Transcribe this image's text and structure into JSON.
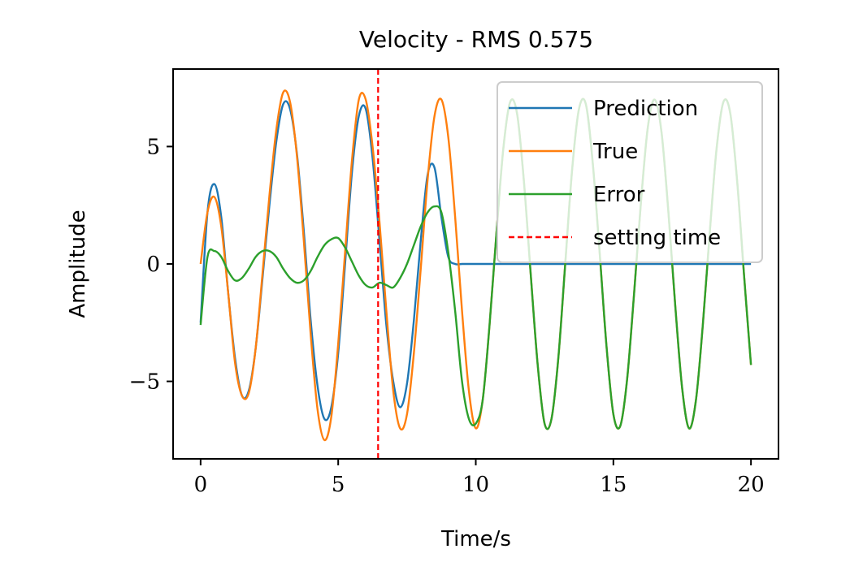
{
  "chart_data": {
    "type": "line",
    "title": "Velocity - RMS 0.575",
    "xlabel": "Time/s",
    "ylabel": "Amplitude",
    "xlim": [
      -1,
      21
    ],
    "ylim": [
      -8.3,
      8.3
    ],
    "xticks": [
      0,
      5,
      10,
      15,
      20
    ],
    "yticks": [
      -5,
      0,
      5
    ],
    "xtick_labels": [
      "0",
      "5",
      "10",
      "15",
      "20"
    ],
    "ytick_labels": [
      "−5",
      "0",
      "5"
    ],
    "grid": false,
    "legend_position": "top-right",
    "settling_time": 6.45,
    "series": [
      {
        "name": "Prediction",
        "color": "#1f77b4",
        "x": [
          0,
          0.25,
          0.5,
          0.75,
          1.0,
          1.25,
          1.5,
          1.75,
          2.0,
          2.25,
          2.5,
          2.75,
          3.0,
          3.25,
          3.5,
          3.75,
          4.0,
          4.25,
          4.5,
          4.75,
          5.0,
          5.25,
          5.5,
          5.75,
          6.0,
          6.25,
          6.5,
          6.75,
          7.0,
          7.25,
          7.5,
          7.75,
          8.0,
          8.25,
          8.5,
          8.75,
          9.0,
          9.25,
          9.5,
          9.75,
          10.0,
          10.5,
          11,
          12,
          13,
          14,
          15,
          16,
          17,
          18,
          19,
          20
        ],
        "values": [
          -2.5,
          2.2,
          3.4,
          2.0,
          -1.2,
          -4.0,
          -5.6,
          -5.4,
          -3.6,
          -0.6,
          2.5,
          5.2,
          6.8,
          6.6,
          4.7,
          1.4,
          -2.4,
          -5.2,
          -6.6,
          -6.1,
          -3.8,
          0.0,
          3.9,
          6.3,
          6.6,
          4.5,
          1.0,
          -2.6,
          -5.0,
          -6.1,
          -5.1,
          -2.4,
          1.0,
          3.8,
          4.1,
          2.0,
          0.3,
          0.0,
          0.0,
          0.0,
          0.0,
          0.0,
          0.0,
          0.0,
          0.0,
          0.0,
          0.0,
          0.0,
          0.0,
          0.0,
          0.0,
          0.0
        ]
      },
      {
        "name": "True",
        "color": "#ff7f0e",
        "amplitude_note": "",
        "x": [
          0,
          0.25,
          0.5,
          0.75,
          1.0,
          1.25,
          1.5,
          1.75,
          2.0,
          2.25,
          2.5,
          2.75,
          3.0,
          3.25,
          3.5,
          3.75,
          4.0,
          4.25,
          4.5,
          4.75,
          5.0,
          5.25,
          5.5,
          5.75,
          6.0,
          6.25,
          6.5,
          6.75,
          7.0,
          7.25,
          7.5,
          7.75,
          8.0,
          8.25,
          8.5,
          8.75,
          9.0,
          9.25,
          9.5,
          9.75,
          10.0,
          10.25,
          10.5,
          10.75,
          11.0,
          11.25,
          11.5,
          11.75,
          12.0,
          12.25,
          12.5,
          12.75,
          13.0,
          13.25,
          13.5,
          13.75,
          14.0,
          14.25,
          14.5,
          14.75,
          15.0,
          15.25,
          15.5,
          15.75,
          16.0,
          16.25,
          16.5,
          16.75,
          17.0,
          17.25,
          17.5,
          17.75,
          18.0,
          18.25,
          18.5,
          18.75,
          19.0,
          19.25,
          19.5,
          19.75,
          20.0
        ],
        "values": [
          0.0,
          2.2,
          2.85,
          1.6,
          -1.2,
          -4.2,
          -5.6,
          -5.5,
          -3.6,
          -0.4,
          2.9,
          5.7,
          7.3,
          6.9,
          4.6,
          1.0,
          -3.0,
          -6.2,
          -7.5,
          -6.5,
          -3.4,
          0.5,
          4.4,
          7.0,
          7.0,
          5.0,
          1.8,
          -2.0,
          -5.4,
          -7.0,
          -6.4,
          -3.8,
          -0.2,
          3.6,
          6.3,
          7.0,
          5.4,
          2.0,
          -2.0,
          -5.4,
          -7.0,
          -5.8,
          -2.6,
          1.3,
          4.9,
          6.9,
          6.4,
          3.5,
          -0.5,
          -4.3,
          -6.8,
          -6.6,
          -4.0,
          0.0,
          4.0,
          6.6,
          6.8,
          4.3,
          0.5,
          -3.5,
          -6.4,
          -6.9,
          -4.9,
          -1.3,
          2.6,
          5.8,
          7.0,
          5.6,
          2.2,
          -1.8,
          -5.3,
          -7.0,
          -5.8,
          -2.6,
          1.3,
          4.9,
          6.9,
          6.4,
          3.5,
          -0.5,
          -4.3
        ]
      },
      {
        "name": "Error",
        "color": "#2ca02c",
        "x": [
          0,
          0.25,
          0.5,
          0.75,
          1.0,
          1.25,
          1.5,
          1.75,
          2.0,
          2.25,
          2.5,
          2.75,
          3.0,
          3.25,
          3.5,
          3.75,
          4.0,
          4.25,
          4.5,
          4.75,
          5.0,
          5.25,
          5.5,
          5.75,
          6.0,
          6.25,
          6.5,
          6.75,
          7.0,
          7.25,
          7.5,
          7.75,
          8.0,
          8.25,
          8.5,
          8.75,
          9.0,
          9.25,
          9.5,
          9.75,
          10.0,
          10.25,
          10.5,
          10.75,
          11.0,
          11.25,
          11.5,
          11.75,
          12.0,
          12.25,
          12.5,
          12.75,
          13.0,
          13.25,
          13.5,
          13.75,
          14.0,
          14.25,
          14.5,
          14.75,
          15.0,
          15.25,
          15.5,
          15.75,
          16.0,
          16.25,
          16.5,
          16.75,
          17.0,
          17.25,
          17.5,
          17.75,
          18.0,
          18.25,
          18.5,
          18.75,
          19.0,
          19.25,
          19.5,
          19.75,
          20.0
        ],
        "values": [
          -2.6,
          0.3,
          0.55,
          0.3,
          -0.3,
          -0.7,
          -0.6,
          -0.2,
          0.3,
          0.55,
          0.55,
          0.3,
          -0.2,
          -0.6,
          -0.8,
          -0.7,
          -0.3,
          0.3,
          0.8,
          1.05,
          1.1,
          0.7,
          0.1,
          -0.5,
          -0.9,
          -1.0,
          -0.8,
          -0.9,
          -1.0,
          -0.6,
          0.0,
          0.8,
          1.6,
          2.2,
          2.45,
          2.2,
          0.5,
          -2.0,
          -5.0,
          -6.6,
          -6.8,
          -5.8,
          -2.6,
          1.3,
          4.9,
          6.9,
          6.4,
          3.5,
          -0.5,
          -4.3,
          -6.8,
          -6.6,
          -4.0,
          0.0,
          4.0,
          6.6,
          6.8,
          4.3,
          0.5,
          -3.5,
          -6.4,
          -6.9,
          -4.9,
          -1.3,
          2.6,
          5.8,
          7.0,
          5.6,
          2.2,
          -1.8,
          -5.3,
          -7.0,
          -5.8,
          -2.6,
          1.3,
          4.9,
          6.9,
          6.4,
          3.5,
          -0.5,
          -4.3
        ]
      }
    ],
    "legend": [
      {
        "label": "Prediction",
        "color": "#1f77b4",
        "style": "solid"
      },
      {
        "label": "True",
        "color": "#ff7f0e",
        "style": "solid"
      },
      {
        "label": "Error",
        "color": "#2ca02c",
        "style": "solid"
      },
      {
        "label": "setting time",
        "color": "#ff0000",
        "style": "dashed"
      }
    ]
  }
}
